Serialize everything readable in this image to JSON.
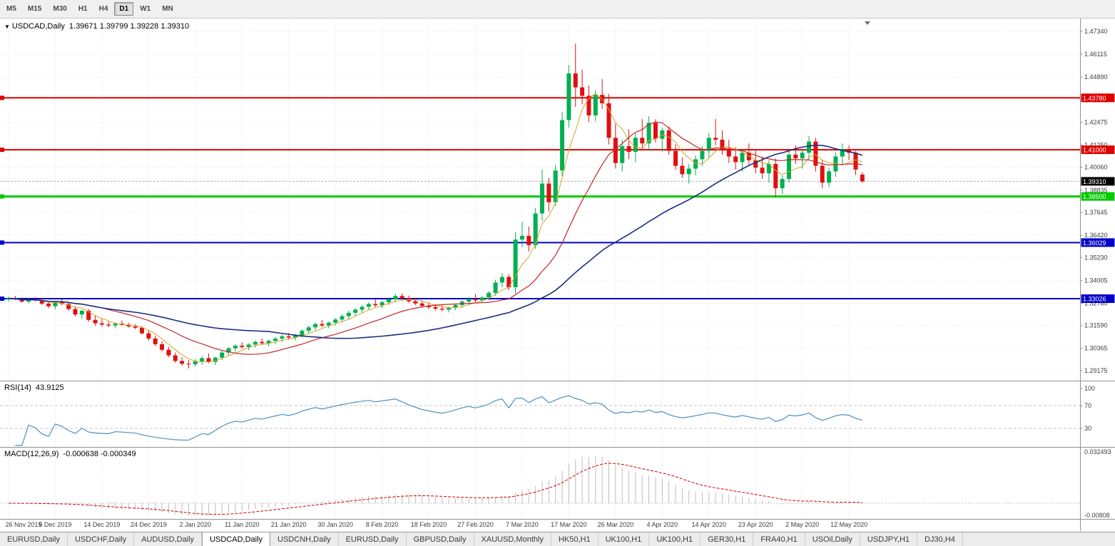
{
  "toolbar": {
    "periods": [
      "M5",
      "M15",
      "M30",
      "H1",
      "H4",
      "D1",
      "W1",
      "MN"
    ],
    "active": "D1"
  },
  "rsi": {
    "label": "RSI(14)",
    "value": "43.9125",
    "color": "#4A90C2",
    "period": 14,
    "levels": [
      100,
      70,
      30
    ]
  },
  "macd": {
    "label": "MACD(12,26,9)",
    "values": "-0.000638 -0.000349",
    "fast": 12,
    "slow": 26,
    "signal_period": 9,
    "axis_top": "0.032493",
    "axis_bottom": "-0.00808",
    "hist_color": "#BDBDBD",
    "signal_color": "#D40000"
  },
  "tabs": {
    "active_index": 3,
    "items": [
      "EURUSD,Daily",
      "USDCHF,Daily",
      "AUDUSD,Daily",
      "USDCAD,Daily",
      "USDCNH,Daily",
      "EURUSD,Daily",
      "GBPUSD,Daily",
      "XAUUSD,Monthly",
      "HK50,H1",
      "UK100,H1",
      "UK100,H1",
      "GER30,H1",
      "FRA40,H1",
      "USOil,Daily",
      "USDJPY,H1",
      "DJ30,H4"
    ]
  },
  "chart_data": {
    "type": "candlestick",
    "symbol": "USDCAD",
    "timeframe": "Daily",
    "title": "USDCAD,Daily",
    "ohlc_text": "1.39671 1.39799 1.39228 1.39310",
    "current_price": 1.3931,
    "current_price_label": "1.39310",
    "colors": {
      "bull": "#00B050",
      "bear": "#E01010",
      "grid": "#e5e5e5"
    },
    "y_axis": {
      "ref": 1.4734,
      "scale": 2620,
      "ticks": [
        1.4734,
        1.46115,
        1.4489,
        1.43665,
        1.42475,
        1.4125,
        1.4006,
        1.38835,
        1.37645,
        1.3642,
        1.3523,
        1.34005,
        1.3278,
        1.3159,
        1.30365,
        1.29175
      ]
    },
    "h_lines": [
      {
        "value": 1.4378,
        "label": "1.43780",
        "color": "#DD0000",
        "width": 2
      },
      {
        "value": 1.41,
        "label": "1.41000",
        "color": "#DD0000",
        "width": 2
      },
      {
        "value": 1.385,
        "label": "1.38500",
        "color": "#00CC00",
        "width": 3
      },
      {
        "value": 1.36029,
        "label": "1.36029",
        "color": "#0000C8",
        "width": 2
      },
      {
        "value": 1.33026,
        "label": "1.33026",
        "color": "#0000C8",
        "width": 2
      }
    ],
    "mas": [
      {
        "period": 5,
        "color": "#D8A328",
        "width": 1
      },
      {
        "period": 15,
        "color": "#C22727",
        "width": 1.2
      },
      {
        "period": 40,
        "color": "#1B2E7E",
        "width": 1.6
      }
    ],
    "dates": [
      {
        "bar": 0,
        "label": "26 Nov 2019"
      },
      {
        "bar": 7,
        "label": "5 Dec 2019"
      },
      {
        "bar": 14,
        "label": "14 Dec 2019"
      },
      {
        "bar": 21,
        "label": "24 Dec 2019"
      },
      {
        "bar": 28,
        "label": "2 Jan 2020"
      },
      {
        "bar": 35,
        "label": "11 Jan 2020"
      },
      {
        "bar": 42,
        "label": "21 Jan 2020"
      },
      {
        "bar": 49,
        "label": "30 Jan 2020"
      },
      {
        "bar": 56,
        "label": "8 Feb 2020"
      },
      {
        "bar": 63,
        "label": "18 Feb 2020"
      },
      {
        "bar": 70,
        "label": "27 Feb 2020"
      },
      {
        "bar": 77,
        "label": "7 Mar 2020"
      },
      {
        "bar": 84,
        "label": "17 Mar 2020"
      },
      {
        "bar": 91,
        "label": "26 Mar 2020"
      },
      {
        "bar": 98,
        "label": "4 Apr 2020"
      },
      {
        "bar": 105,
        "label": "14 Apr 2020"
      },
      {
        "bar": 112,
        "label": "23 Apr 2020"
      },
      {
        "bar": 119,
        "label": "2 May 2020"
      },
      {
        "bar": 126,
        "label": "12 May 2020"
      }
    ],
    "candles": [
      [
        1.3298,
        1.3312,
        1.3286,
        1.3305
      ],
      [
        1.3305,
        1.3318,
        1.3294,
        1.3299
      ],
      [
        1.3299,
        1.3309,
        1.3281,
        1.3287
      ],
      [
        1.3287,
        1.3303,
        1.3277,
        1.3297
      ],
      [
        1.3297,
        1.3311,
        1.3288,
        1.3293
      ],
      [
        1.3293,
        1.3304,
        1.3269,
        1.3276
      ],
      [
        1.3276,
        1.3292,
        1.3252,
        1.3262
      ],
      [
        1.3262,
        1.3291,
        1.3246,
        1.3284
      ],
      [
        1.3284,
        1.3299,
        1.3268,
        1.3274
      ],
      [
        1.3274,
        1.328,
        1.3238,
        1.3247
      ],
      [
        1.3247,
        1.3262,
        1.3208,
        1.3218
      ],
      [
        1.3218,
        1.3244,
        1.3193,
        1.3238
      ],
      [
        1.3238,
        1.3248,
        1.3179,
        1.3189
      ],
      [
        1.3189,
        1.3211,
        1.3158,
        1.3171
      ],
      [
        1.3171,
        1.3194,
        1.3154,
        1.3164
      ],
      [
        1.3164,
        1.3181,
        1.3149,
        1.3159
      ],
      [
        1.3159,
        1.3176,
        1.3144,
        1.3169
      ],
      [
        1.3169,
        1.3186,
        1.3157,
        1.3162
      ],
      [
        1.3162,
        1.3173,
        1.3147,
        1.3154
      ],
      [
        1.3154,
        1.3167,
        1.3139,
        1.3147
      ],
      [
        1.3147,
        1.3154,
        1.3109,
        1.3117
      ],
      [
        1.3117,
        1.3131,
        1.3079,
        1.3089
      ],
      [
        1.3089,
        1.3104,
        1.3049,
        1.3059
      ],
      [
        1.3059,
        1.3074,
        1.3019,
        1.3029
      ],
      [
        1.3029,
        1.3044,
        1.2989,
        1.2999
      ],
      [
        1.2999,
        1.3014,
        1.2959,
        1.2969
      ],
      [
        1.2969,
        1.2989,
        1.2944,
        1.2954
      ],
      [
        1.2954,
        1.2974,
        1.2929,
        1.2951
      ],
      [
        1.2951,
        1.2979,
        1.2939,
        1.2967
      ],
      [
        1.2967,
        1.2994,
        1.2949,
        1.2984
      ],
      [
        1.2984,
        1.3009,
        1.2957,
        1.2964
      ],
      [
        1.2964,
        1.2991,
        1.2947,
        1.2987
      ],
      [
        1.2987,
        1.3024,
        1.2974,
        1.3014
      ],
      [
        1.3014,
        1.3044,
        1.2999,
        1.3037
      ],
      [
        1.3037,
        1.3059,
        1.3019,
        1.3051
      ],
      [
        1.3051,
        1.3069,
        1.3034,
        1.3044
      ],
      [
        1.3044,
        1.3064,
        1.3027,
        1.3057
      ],
      [
        1.3057,
        1.3079,
        1.3041,
        1.3071
      ],
      [
        1.3071,
        1.3089,
        1.3054,
        1.3064
      ],
      [
        1.3064,
        1.3084,
        1.3047,
        1.3077
      ],
      [
        1.3077,
        1.3097,
        1.3059,
        1.3089
      ],
      [
        1.3089,
        1.3109,
        1.3071,
        1.3101
      ],
      [
        1.3101,
        1.3119,
        1.3084,
        1.3094
      ],
      [
        1.3094,
        1.3114,
        1.3079,
        1.3107
      ],
      [
        1.3107,
        1.3139,
        1.3094,
        1.3131
      ],
      [
        1.3131,
        1.3159,
        1.3117,
        1.3149
      ],
      [
        1.3149,
        1.3174,
        1.3134,
        1.3167
      ],
      [
        1.3167,
        1.3189,
        1.3149,
        1.3159
      ],
      [
        1.3159,
        1.3181,
        1.3144,
        1.3174
      ],
      [
        1.3174,
        1.3199,
        1.3159,
        1.3191
      ],
      [
        1.3191,
        1.3219,
        1.3177,
        1.3209
      ],
      [
        1.3209,
        1.3237,
        1.3194,
        1.3227
      ],
      [
        1.3227,
        1.3254,
        1.3211,
        1.3244
      ],
      [
        1.3244,
        1.3269,
        1.3229,
        1.3259
      ],
      [
        1.3259,
        1.3284,
        1.3244,
        1.3274
      ],
      [
        1.3274,
        1.3299,
        1.3257,
        1.3267
      ],
      [
        1.3267,
        1.3291,
        1.3251,
        1.3284
      ],
      [
        1.3284,
        1.3309,
        1.3269,
        1.3299
      ],
      [
        1.3299,
        1.3329,
        1.3284,
        1.3317
      ],
      [
        1.3317,
        1.3331,
        1.3294,
        1.3304
      ],
      [
        1.3304,
        1.3319,
        1.3279,
        1.3289
      ],
      [
        1.3289,
        1.3307,
        1.3267,
        1.3277
      ],
      [
        1.3277,
        1.3294,
        1.3254,
        1.3264
      ],
      [
        1.3264,
        1.3284,
        1.3247,
        1.3257
      ],
      [
        1.3257,
        1.3274,
        1.3239,
        1.3249
      ],
      [
        1.3249,
        1.3267,
        1.3234,
        1.3244
      ],
      [
        1.3244,
        1.3261,
        1.3229,
        1.3254
      ],
      [
        1.3254,
        1.3277,
        1.3241,
        1.3269
      ],
      [
        1.3269,
        1.3294,
        1.3254,
        1.3287
      ],
      [
        1.3287,
        1.3311,
        1.3271,
        1.3301
      ],
      [
        1.3301,
        1.3327,
        1.3284,
        1.3294
      ],
      [
        1.3294,
        1.3317,
        1.3279,
        1.3309
      ],
      [
        1.3309,
        1.3344,
        1.3294,
        1.3334
      ],
      [
        1.3334,
        1.3404,
        1.3319,
        1.3389
      ],
      [
        1.3389,
        1.3439,
        1.3364,
        1.3419
      ],
      [
        1.3419,
        1.3434,
        1.3349,
        1.3364
      ],
      [
        1.3364,
        1.3659,
        1.3329,
        1.3619
      ],
      [
        1.3619,
        1.3714,
        1.3579,
        1.3639
      ],
      [
        1.3639,
        1.3689,
        1.3554,
        1.3589
      ],
      [
        1.3589,
        1.3789,
        1.3569,
        1.3759
      ],
      [
        1.3759,
        1.3994,
        1.3719,
        1.3919
      ],
      [
        1.3919,
        1.3949,
        1.3769,
        1.3819
      ],
      [
        1.3819,
        1.4019,
        1.3799,
        1.3989
      ],
      [
        1.3989,
        1.4304,
        1.3959,
        1.4259
      ],
      [
        1.4259,
        1.4554,
        1.4219,
        1.4509
      ],
      [
        1.4509,
        1.4668,
        1.4329,
        1.4434
      ],
      [
        1.4434,
        1.4529,
        1.4344,
        1.4389
      ],
      [
        1.4389,
        1.4444,
        1.4249,
        1.4284
      ],
      [
        1.4284,
        1.4419,
        1.4254,
        1.4394
      ],
      [
        1.4394,
        1.4479,
        1.4319,
        1.4349
      ],
      [
        1.4349,
        1.4399,
        1.4129,
        1.4164
      ],
      [
        1.4164,
        1.4239,
        1.3999,
        1.4029
      ],
      [
        1.4029,
        1.4154,
        1.3984,
        1.4119
      ],
      [
        1.4119,
        1.4209,
        1.4049,
        1.4089
      ],
      [
        1.4089,
        1.4189,
        1.4034,
        1.4164
      ],
      [
        1.4164,
        1.4264,
        1.4109,
        1.4134
      ],
      [
        1.4134,
        1.4279,
        1.4094,
        1.4244
      ],
      [
        1.4244,
        1.4264,
        1.4139,
        1.4159
      ],
      [
        1.4159,
        1.4219,
        1.4089,
        1.4204
      ],
      [
        1.4204,
        1.4224,
        1.4074,
        1.4094
      ],
      [
        1.4094,
        1.4129,
        1.3994,
        1.4014
      ],
      [
        1.4014,
        1.4059,
        1.3949,
        1.3969
      ],
      [
        1.3969,
        1.4024,
        1.3919,
        1.3999
      ],
      [
        1.3999,
        1.4069,
        1.3964,
        1.4049
      ],
      [
        1.4049,
        1.4119,
        1.4014,
        1.4094
      ],
      [
        1.4094,
        1.4189,
        1.4059,
        1.4164
      ],
      [
        1.4164,
        1.4264,
        1.4124,
        1.4154
      ],
      [
        1.4154,
        1.4204,
        1.4074,
        1.4104
      ],
      [
        1.4104,
        1.4154,
        1.4029,
        1.4064
      ],
      [
        1.4064,
        1.4114,
        1.3994,
        1.4034
      ],
      [
        1.4034,
        1.4104,
        1.3984,
        1.4084
      ],
      [
        1.4084,
        1.4134,
        1.4014,
        1.4044
      ],
      [
        1.4044,
        1.4094,
        1.3974,
        1.4004
      ],
      [
        1.4004,
        1.4064,
        1.3944,
        1.3974
      ],
      [
        1.3974,
        1.4044,
        1.3924,
        1.4024
      ],
      [
        1.4024,
        1.4054,
        1.3849,
        1.3894
      ],
      [
        1.3894,
        1.3964,
        1.3864,
        1.3944
      ],
      [
        1.3944,
        1.4094,
        1.3924,
        1.4074
      ],
      [
        1.4074,
        1.4124,
        1.4024,
        1.4054
      ],
      [
        1.4054,
        1.4104,
        1.3999,
        1.4084
      ],
      [
        1.4084,
        1.4174,
        1.4044,
        1.4144
      ],
      [
        1.4144,
        1.4164,
        1.3984,
        1.4014
      ],
      [
        1.4014,
        1.4044,
        1.3894,
        1.3924
      ],
      [
        1.3924,
        1.4004,
        1.3899,
        1.3984
      ],
      [
        1.3984,
        1.4084,
        1.3954,
        1.4064
      ],
      [
        1.4064,
        1.4134,
        1.4024,
        1.4104
      ],
      [
        1.4104,
        1.4124,
        1.4044,
        1.4084
      ],
      [
        1.4084,
        1.4094,
        1.3964,
        1.3994
      ],
      [
        1.39671,
        1.39799,
        1.39228,
        1.3931
      ]
    ]
  }
}
